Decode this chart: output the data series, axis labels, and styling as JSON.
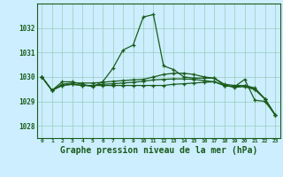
{
  "background_color": "#cceeff",
  "grid_color": "#99ccbb",
  "line_color": "#1a5c1a",
  "xlabel": "Graphe pression niveau de la mer (hPa)",
  "xlabel_fontsize": 7,
  "xticks": [
    0,
    1,
    2,
    3,
    4,
    5,
    6,
    7,
    8,
    9,
    10,
    11,
    12,
    13,
    14,
    15,
    16,
    17,
    18,
    19,
    20,
    21,
    22,
    23
  ],
  "yticks": [
    1028,
    1029,
    1030,
    1031,
    1032
  ],
  "ylim": [
    1027.5,
    1033.0
  ],
  "xlim": [
    -0.5,
    23.5
  ],
  "line1": [
    1030.0,
    1029.45,
    1029.8,
    1029.8,
    1029.7,
    1029.6,
    1029.8,
    1030.35,
    1031.1,
    1031.3,
    1032.45,
    1032.55,
    1030.45,
    1030.3,
    1030.0,
    1029.95,
    1029.95,
    1029.95,
    1029.65,
    1029.6,
    1029.9,
    1029.05,
    1029.0,
    1028.45
  ],
  "line2": [
    1030.0,
    1029.45,
    1029.65,
    1029.7,
    1029.65,
    1029.65,
    1029.65,
    1029.65,
    1029.65,
    1029.65,
    1029.65,
    1029.65,
    1029.65,
    1029.7,
    1029.72,
    1029.75,
    1029.78,
    1029.8,
    1029.65,
    1029.6,
    1029.65,
    1029.5,
    1029.1,
    1028.45
  ],
  "line3": [
    1030.0,
    1029.45,
    1029.7,
    1029.75,
    1029.75,
    1029.75,
    1029.78,
    1029.82,
    1029.85,
    1029.88,
    1029.9,
    1030.0,
    1030.1,
    1030.15,
    1030.15,
    1030.1,
    1030.0,
    1029.95,
    1029.7,
    1029.65,
    1029.65,
    1029.55,
    1029.1,
    1028.45
  ],
  "line4": [
    1030.0,
    1029.45,
    1029.65,
    1029.7,
    1029.65,
    1029.65,
    1029.7,
    1029.72,
    1029.75,
    1029.78,
    1029.82,
    1029.88,
    1029.9,
    1029.92,
    1029.92,
    1029.9,
    1029.85,
    1029.8,
    1029.65,
    1029.58,
    1029.6,
    1029.48,
    1029.1,
    1028.45
  ]
}
